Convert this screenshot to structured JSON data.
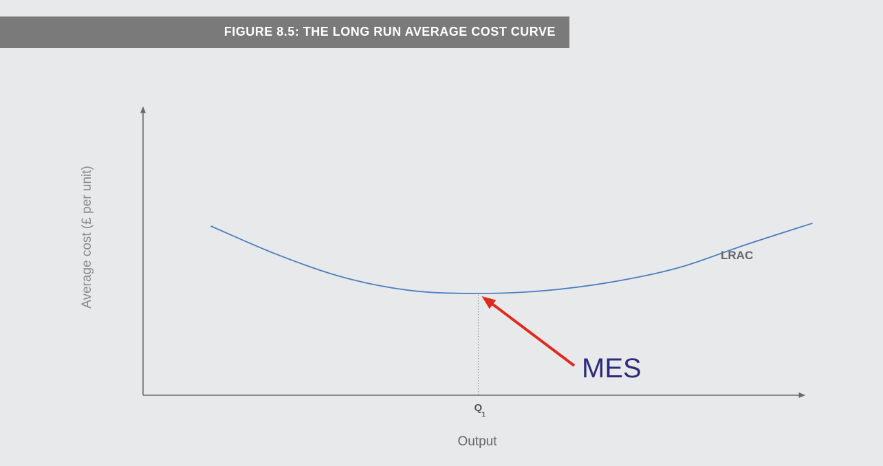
{
  "figure": {
    "title": "FIGURE 8.5: THE LONG RUN AVERAGE COST CURVE"
  },
  "chart_data": {
    "type": "line",
    "title": "FIGURE 8.5: THE LONG RUN AVERAGE COST CURVE",
    "xlabel": "Output",
    "ylabel": "Average cost (£ per unit)",
    "xlim": [
      0,
      10
    ],
    "ylim": [
      0,
      10
    ],
    "grid": false,
    "series": [
      {
        "name": "LRAC",
        "x": [
          1.0,
          2.0,
          3.0,
          4.0,
          5.0,
          6.0,
          7.0,
          8.0,
          9.0,
          10.0
        ],
        "values": [
          5.9,
          4.9,
          4.1,
          3.65,
          3.55,
          3.65,
          3.95,
          4.45,
          5.25,
          6.0
        ]
      }
    ],
    "series_label": "LRAC",
    "minimum": {
      "x": 5.0,
      "y": 3.55
    },
    "x_tick": {
      "main": "Q",
      "sub": "1",
      "x": 5.0
    },
    "annotation": {
      "text": "MES",
      "color": "#e02a1e",
      "text_color": "#2f2a7a"
    },
    "colors": {
      "curve": "#4a7fc0",
      "axis": "#6a6a6a",
      "banner": "#7a7a7a",
      "background": "#e8e9eb"
    }
  }
}
